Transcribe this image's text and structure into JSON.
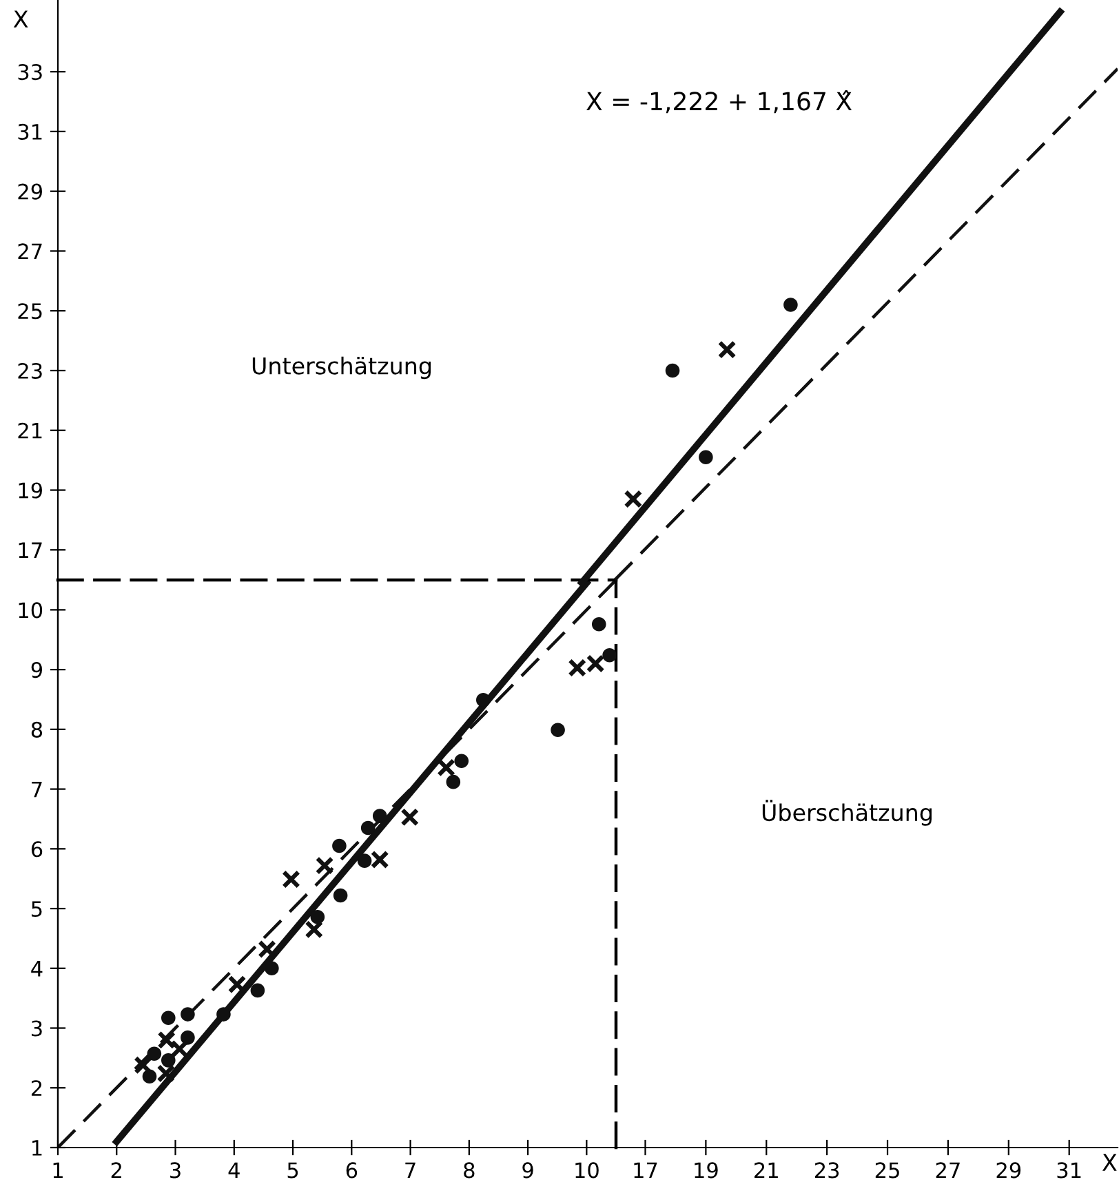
{
  "chart_data": [
    {
      "type": "scatter",
      "xlim": [
        1,
        10.5
      ],
      "ylim": [
        1,
        10.5
      ],
      "xticks": [
        1,
        2,
        3,
        4,
        5,
        6,
        7,
        8,
        9,
        10
      ],
      "yticks": [
        1,
        2,
        3,
        4,
        5,
        6,
        7,
        8,
        9,
        10
      ],
      "grid": false,
      "legend": false,
      "series": [
        {
          "marker": "circle",
          "color": "#111111",
          "x": [
            2.56,
            2.64,
            2.88,
            2.88,
            3.21,
            3.21,
            3.82,
            4.4,
            4.64,
            5.42,
            5.81,
            5.79,
            6.22,
            6.28,
            6.48,
            7.73,
            7.87,
            8.24,
            9.51,
            10.21,
            10.39
          ],
          "values": [
            2.19,
            2.57,
            3.17,
            2.46,
            3.23,
            2.84,
            3.23,
            3.63,
            4.0,
            4.86,
            5.22,
            6.05,
            5.8,
            6.35,
            6.55,
            7.12,
            7.47,
            8.49,
            7.99,
            9.76,
            9.24
          ]
        },
        {
          "marker": "cross",
          "color": "#111111",
          "x": [
            2.45,
            2.84,
            2.85,
            3.07,
            4.05,
            4.56,
            4.97,
            5.36,
            5.54,
            6.48,
            6.99,
            7.61,
            9.84,
            10.15
          ],
          "values": [
            2.38,
            2.24,
            2.8,
            2.65,
            3.73,
            4.32,
            5.49,
            4.65,
            5.72,
            5.82,
            6.53,
            7.36,
            9.03,
            9.1
          ]
        },
        {
          "type": "line",
          "line_style": "solid",
          "color": "#111111",
          "x": [
            2,
            10.0
          ],
          "values": [
            1.1,
            10.45
          ]
        },
        {
          "type": "line",
          "line_style": "dashed",
          "color": "#111111",
          "x": [
            1,
            10.5
          ],
          "values": [
            1,
            10.5
          ]
        }
      ]
    },
    {
      "type": "scatter",
      "xlabel": "X",
      "ylabel": "X",
      "xlim": [
        -2.4,
        32.6
      ],
      "ylim": [
        -3.0,
        35.4
      ],
      "xticks": [
        17,
        19,
        21,
        23,
        25,
        27,
        29,
        31
      ],
      "yticks": [
        17,
        19,
        21,
        23,
        25,
        27,
        29,
        31,
        33
      ],
      "grid": false,
      "legend": false,
      "series": [
        {
          "marker": "circle",
          "color": "#111111",
          "x": [
            17.9,
            19.0,
            21.8
          ],
          "values": [
            23.0,
            20.1,
            25.2
          ]
        },
        {
          "marker": "cross",
          "color": "#111111",
          "x": [
            16.6,
            19.7
          ],
          "values": [
            18.7,
            23.7
          ]
        },
        {
          "type": "line",
          "line_style": "solid",
          "color": "#111111",
          "x": [
            14.9,
            30.7
          ],
          "values": [
            15.9,
            35.0
          ]
        },
        {
          "type": "line",
          "line_style": "dashed",
          "color": "#111111",
          "x": [
            16.0,
            32.6
          ],
          "values": [
            16.0,
            33.1
          ]
        }
      ],
      "annotations": [
        "X = -1,222 + 1,167 X̂",
        "Unterschätzung",
        "Überschätzung"
      ]
    }
  ]
}
